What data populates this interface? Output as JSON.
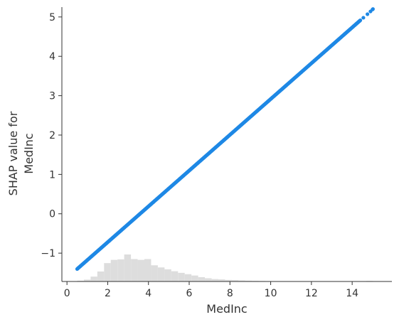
{
  "chart_data": {
    "type": "scatter",
    "xlabel": "MedInc",
    "ylabel_lines": [
      "SHAP value for",
      "MedInc"
    ],
    "xlim": [
      -0.25,
      15.95
    ],
    "ylim": [
      -1.72,
      5.25
    ],
    "x_ticks": [
      0,
      2,
      4,
      6,
      8,
      10,
      12,
      14
    ],
    "y_ticks": [
      -1,
      0,
      1,
      2,
      3,
      4,
      5
    ],
    "x_tick_labels": [
      "0",
      "2",
      "4",
      "6",
      "8",
      "10",
      "12",
      "14"
    ],
    "y_tick_labels": [
      "−1",
      "0",
      "1",
      "2",
      "3",
      "4",
      "5"
    ],
    "grid": false,
    "point_color": "#1E88E5",
    "histogram_color": "#dddddd",
    "series": [
      {
        "line": {
          "x_min": 0.5,
          "x_max": 14.4,
          "slope": 0.4545,
          "intercept": -1.63
        },
        "sparse_points": [
          [
            14.55,
            4.98
          ],
          [
            14.75,
            5.07
          ],
          [
            14.9,
            5.14
          ],
          [
            15.0,
            5.19
          ],
          [
            15.02,
            5.2
          ]
        ]
      }
    ],
    "histogram": {
      "bin_edges": [
        0.5,
        0.83,
        1.16,
        1.49,
        1.82,
        2.15,
        2.48,
        2.81,
        3.14,
        3.47,
        3.8,
        4.13,
        4.46,
        4.79,
        5.12,
        5.45,
        5.78,
        6.11,
        6.44,
        6.77,
        7.1,
        7.43,
        7.76,
        8.09,
        8.42,
        8.75,
        9.08,
        9.41,
        9.74,
        10.07,
        10.4,
        10.73,
        11.06,
        11.39,
        11.72,
        12.05,
        12.38,
        12.71,
        13.04,
        13.37,
        13.7,
        14.03,
        14.36,
        14.69,
        15.02
      ],
      "counts": [
        0.03,
        0.07,
        0.18,
        0.37,
        0.68,
        0.8,
        0.82,
        1.0,
        0.83,
        0.8,
        0.83,
        0.6,
        0.52,
        0.45,
        0.38,
        0.32,
        0.27,
        0.22,
        0.16,
        0.12,
        0.09,
        0.08,
        0.06,
        0.05,
        0.04,
        0.03,
        0.025,
        0.02,
        0.015,
        0.012,
        0.01,
        0.01,
        0.008,
        0.006,
        0.005,
        0.004,
        0.004,
        0.003,
        0.003,
        0.003,
        0.003,
        0.003,
        0.003,
        0.02
      ]
    }
  }
}
